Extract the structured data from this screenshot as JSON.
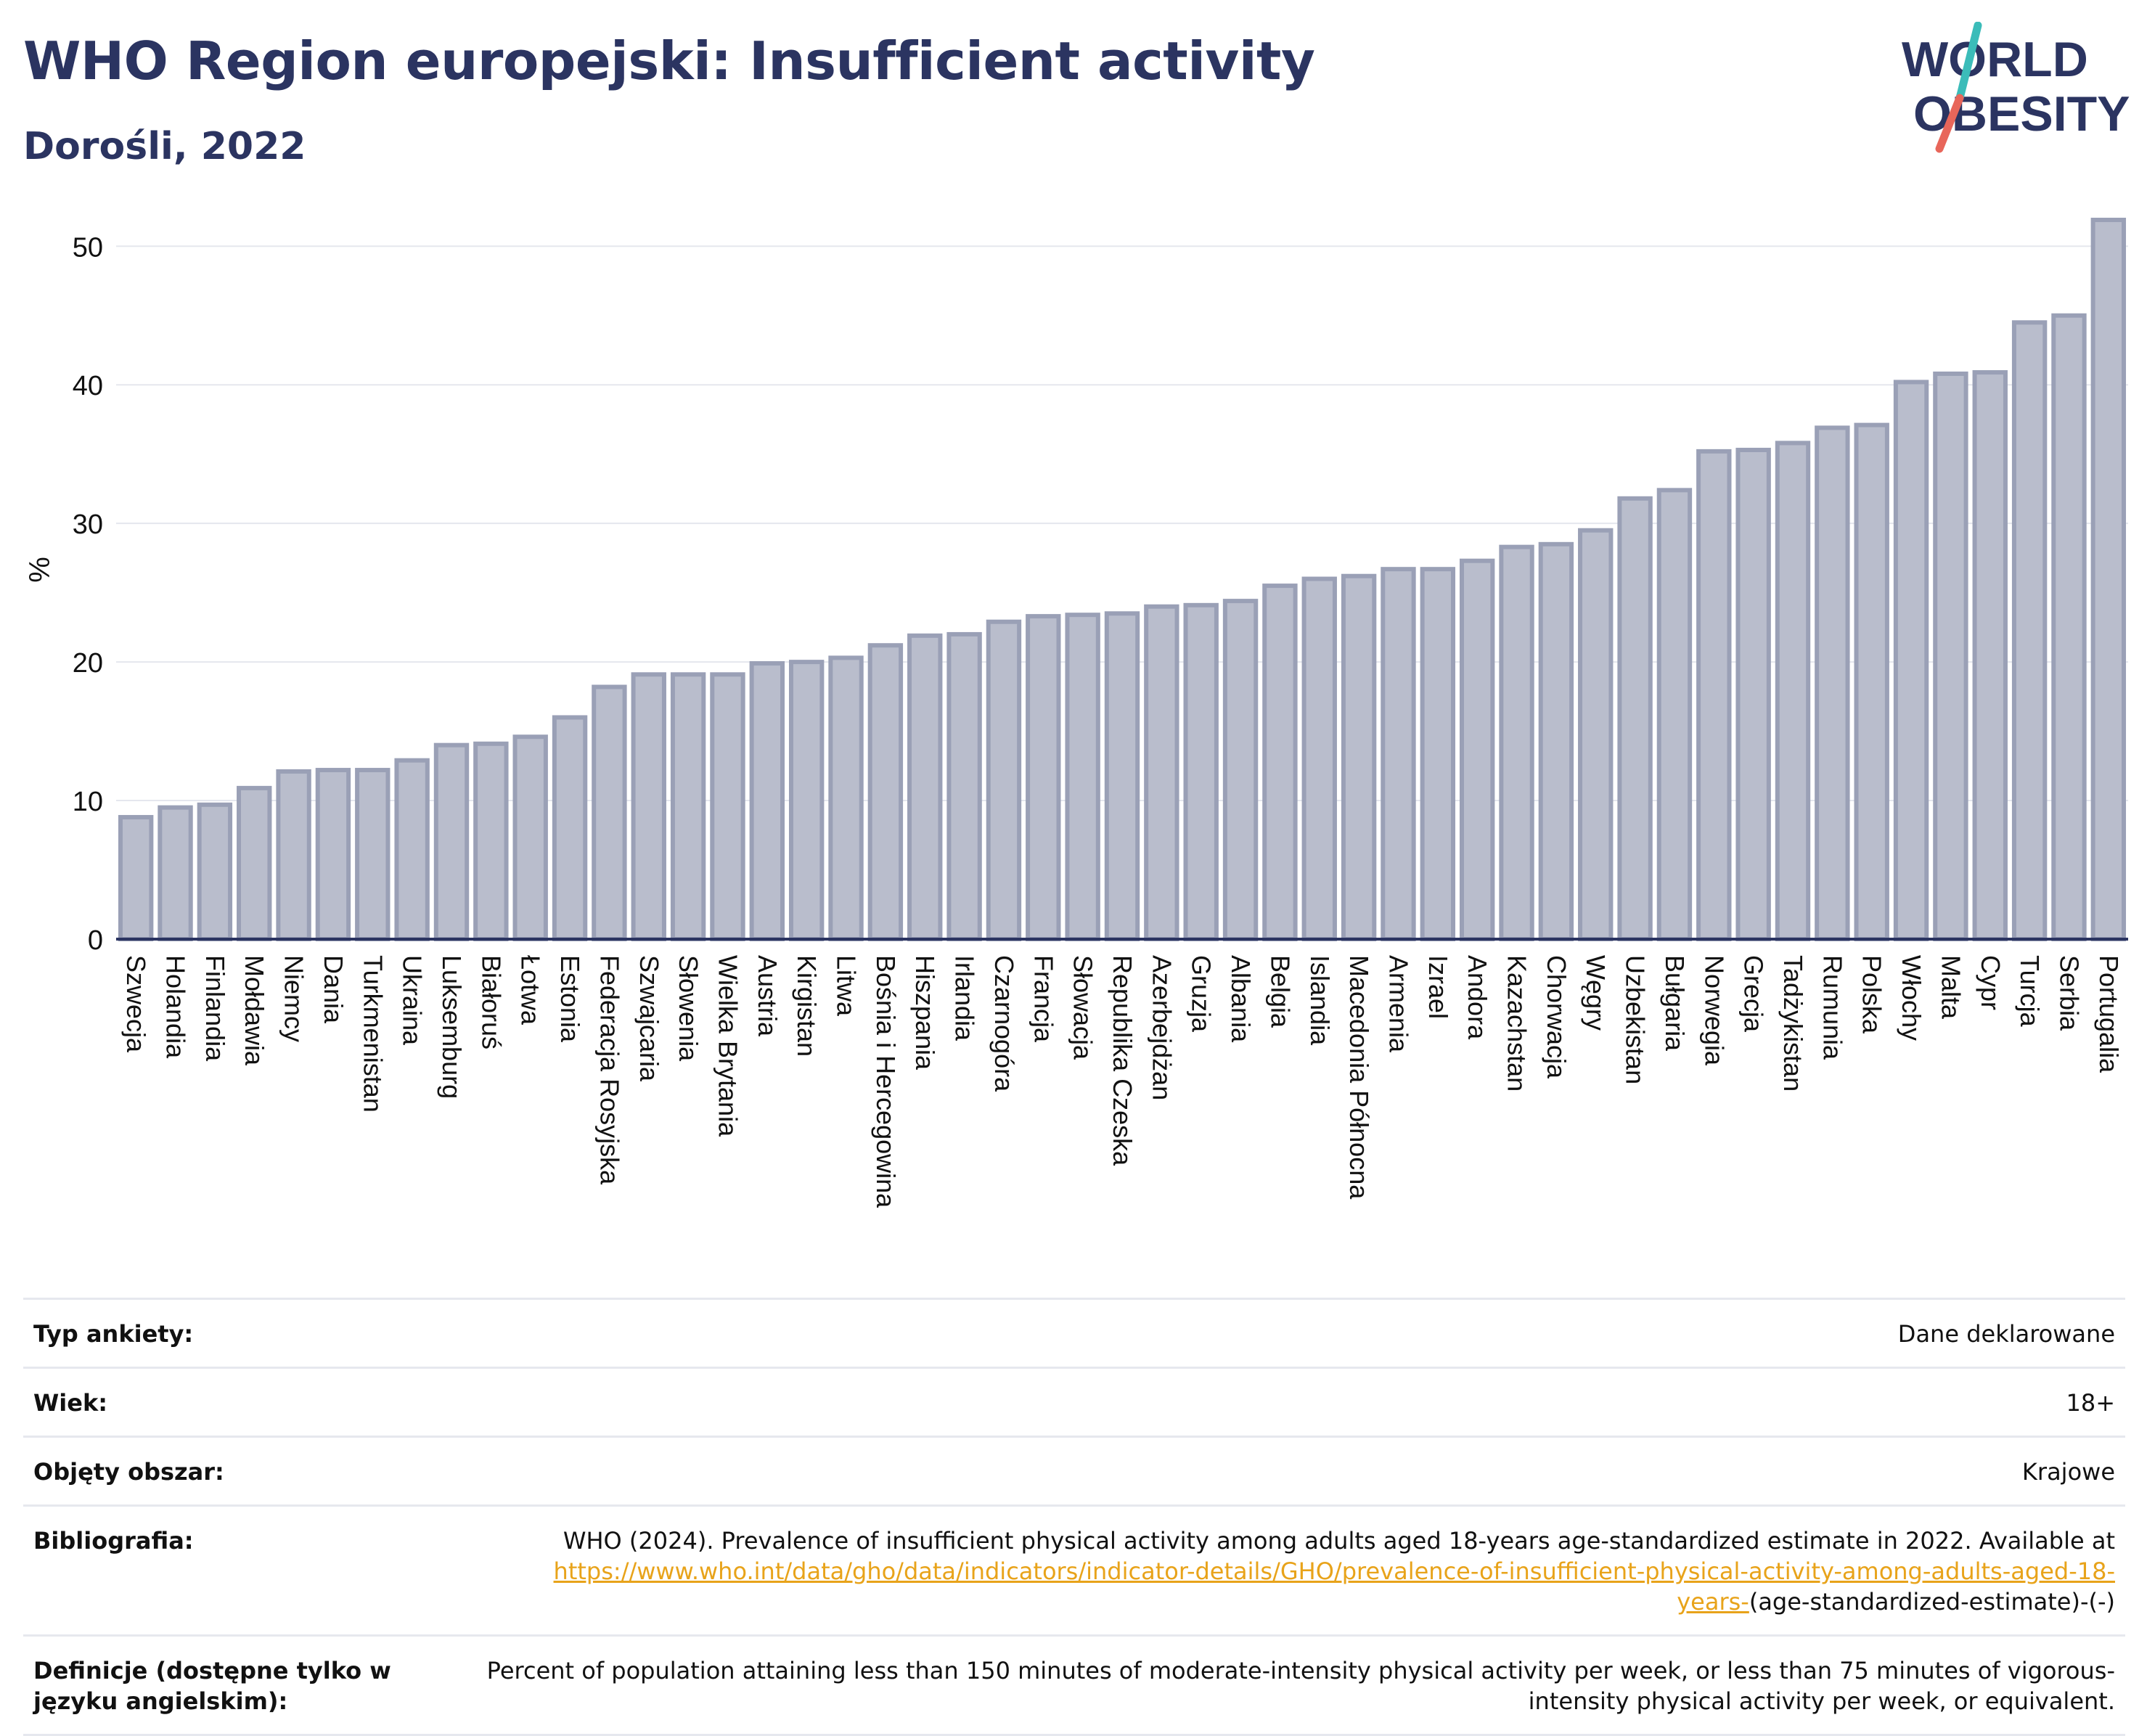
{
  "header": {
    "title": "WHO Region europejski: Insufficient activity",
    "subtitle": "Dorośli, 2022"
  },
  "logo": {
    "line1": "WORLD",
    "line2": "OBESITY"
  },
  "colors": {
    "bar_fill": "#b9bdcc",
    "bar_stroke": "#9aa0b6",
    "text": "#2b3461",
    "axis": "#2b3461",
    "link": "#e8a31a",
    "logo_slash_top": "#3bbcb9",
    "logo_slash_bottom": "#e8665a"
  },
  "chart_data": {
    "type": "bar",
    "ylabel": "%",
    "ylim": [
      0,
      53
    ],
    "yticks": [
      0,
      10,
      20,
      30,
      40,
      50
    ],
    "grid": true,
    "categories": [
      "Szwecja",
      "Holandia",
      "Finlandia",
      "Mołdawia",
      "Niemcy",
      "Dania",
      "Turkmenistan",
      "Ukraina",
      "Luksemburg",
      "Białoruś",
      "Łotwa",
      "Estonia",
      "Federacja Rosyjska",
      "Szwajcaria",
      "Słowenia",
      "Wielka Brytania",
      "Austria",
      "Kirgistan",
      "Litwa",
      "Bośnia i Hercegowina",
      "Hiszpania",
      "Irlandia",
      "Czarnogóra",
      "Francja",
      "Słowacja",
      "Republika Czeska",
      "Azerbejdżan",
      "Gruzja",
      "Albania",
      "Belgia",
      "Islandia",
      "Macedonia Północna",
      "Armenia",
      "Izrael",
      "Andora",
      "Kazachstan",
      "Chorwacja",
      "Węgry",
      "Uzbekistan",
      "Bułgaria",
      "Norwegia",
      "Grecja",
      "Tadżykistan",
      "Rumunia",
      "Polska",
      "Włochy",
      "Malta",
      "Cypr",
      "Turcja",
      "Serbia",
      "Portugalia"
    ],
    "values": [
      8.8,
      9.5,
      9.7,
      10.9,
      12.1,
      12.2,
      12.2,
      12.9,
      14.0,
      14.1,
      14.6,
      16.0,
      18.2,
      19.1,
      19.1,
      19.1,
      19.9,
      20.0,
      20.3,
      21.2,
      21.9,
      22.0,
      22.9,
      23.3,
      23.4,
      23.5,
      24.0,
      24.1,
      24.4,
      25.5,
      26.0,
      26.2,
      26.7,
      26.7,
      27.3,
      28.3,
      28.5,
      29.5,
      31.8,
      32.4,
      35.2,
      35.3,
      35.8,
      36.9,
      37.1,
      40.2,
      40.8,
      40.9,
      44.5,
      45.0,
      51.9
    ]
  },
  "info": {
    "survey_type": {
      "label": "Typ ankiety:",
      "value": "Dane deklarowane"
    },
    "age": {
      "label": "Wiek:",
      "value": "18+"
    },
    "area": {
      "label": "Objęty obszar:",
      "value": "Krajowe"
    },
    "bibliography": {
      "label": "Bibliografia:",
      "text": "WHO (2024). Prevalence of insufficient physical activity among adults aged 18-years age-standardized estimate in 2022. Available at",
      "link": "https://www.who.int/data/gho/data/indicators/indicator-details/GHO/prevalence-of-insufficient-physical-activity-among-adults-aged-18-years-",
      "suffix": "(age-standardized-estimate)-(-)"
    },
    "definitions": {
      "label": "Definicje (dostępne tylko w języku angielskim):",
      "value": "Percent of population attaining less than 150 minutes of moderate-intensity physical activity per week, or less than 75 minutes of vigorous-intensity physical activity per week, or equivalent."
    }
  }
}
